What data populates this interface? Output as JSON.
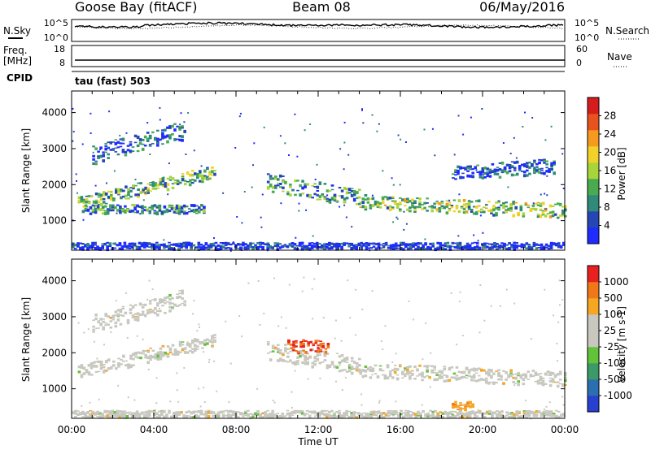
{
  "header": {
    "station": "Goose Bay (fitACF)",
    "beam": "Beam 08",
    "date": "06/May/2016"
  },
  "noise_panel": {
    "left_label": "N.Sky",
    "right_label": "N.Search",
    "left_ticks": [
      "10^5",
      "10^0"
    ],
    "right_ticks": [
      "10^5",
      "10^0"
    ]
  },
  "freq_panel": {
    "left_label_line1": "Freq.",
    "left_label_line2": "[MHz]",
    "right_label": "Nave",
    "left_ticks": [
      "18",
      "8"
    ],
    "right_ticks": [
      "60",
      "0"
    ]
  },
  "cpid": {
    "label": "CPID",
    "mode": "tau (fast) 503"
  },
  "chart_data": [
    {
      "type": "heatmap",
      "name": "Power",
      "ylabel": "Slant Range [km]",
      "colorbar_label": "Power [dB]",
      "ylim": [
        180,
        4600
      ],
      "yticks": [
        1000,
        2000,
        3000,
        4000
      ],
      "colorbar_ticks": [
        4,
        8,
        12,
        16,
        20,
        24,
        28
      ],
      "colorbar_colors": [
        "#1f2bff",
        "#2547b5",
        "#2f8a7a",
        "#49aa4f",
        "#a8d63a",
        "#f2d22a",
        "#f59a1f",
        "#e8531d",
        "#d61c1c"
      ],
      "bands": [
        {
          "t0": 0.3,
          "t1": 7.0,
          "r_start": 1450,
          "r_end": 2350,
          "width": 180,
          "level": 0.4
        },
        {
          "t0": 0.5,
          "t1": 6.5,
          "r_start": 1300,
          "r_end": 1300,
          "width": 120,
          "level": 0.3
        },
        {
          "t0": 1.0,
          "t1": 5.5,
          "r_start": 2800,
          "r_end": 3500,
          "width": 250,
          "level": 0.2
        },
        {
          "t0": 9.5,
          "t1": 14.0,
          "r_start": 2050,
          "r_end": 1600,
          "width": 250,
          "level": 0.3
        },
        {
          "t0": 14.0,
          "t1": 24.0,
          "r_start": 1500,
          "r_end": 1250,
          "width": 200,
          "level": 0.45
        },
        {
          "t0": 18.5,
          "t1": 23.5,
          "r_start": 2300,
          "r_end": 2500,
          "width": 200,
          "level": 0.15
        },
        {
          "t0": 0.0,
          "t1": 24.0,
          "r_start": 280,
          "r_end": 280,
          "width": 90,
          "level": 0.05
        }
      ]
    },
    {
      "type": "heatmap",
      "name": "Velocity",
      "ylabel": "Slant Range [km]",
      "xlabel": "Time UT",
      "colorbar_label": "Velocity [m s-1]",
      "ylim": [
        180,
        4600
      ],
      "xlim": [
        0,
        24
      ],
      "yticks": [
        1000,
        2000,
        3000,
        4000
      ],
      "xticks": [
        "00:00",
        "04:00",
        "08:00",
        "12:00",
        "16:00",
        "20:00",
        "00:00"
      ],
      "colorbar_ticks": [
        "1000",
        "500",
        "100",
        "25",
        "-25",
        "-100",
        "-500",
        "-1000"
      ],
      "colorbar_colors": [
        "#2840d0",
        "#2c6fb0",
        "#3b9a68",
        "#62c23a",
        "#c8c8c0",
        "#c8c8c0",
        "#f5a623",
        "#f07818",
        "#e82020"
      ],
      "bands": [
        {
          "t0": 0.3,
          "t1": 7.0,
          "r_start": 1450,
          "r_end": 2350,
          "width": 180,
          "level": 0.5
        },
        {
          "t0": 1.0,
          "t1": 5.5,
          "r_start": 2800,
          "r_end": 3500,
          "width": 250,
          "level": 0.5
        },
        {
          "t0": 9.5,
          "t1": 14.0,
          "r_start": 2050,
          "r_end": 1600,
          "width": 250,
          "level": 0.5
        },
        {
          "t0": 14.0,
          "t1": 24.0,
          "r_start": 1500,
          "r_end": 1250,
          "width": 200,
          "level": 0.5
        },
        {
          "t0": 10.5,
          "t1": 12.5,
          "r_start": 2150,
          "r_end": 2150,
          "width": 180,
          "level": 1.0
        },
        {
          "t0": 18.5,
          "t1": 19.5,
          "r_start": 500,
          "r_end": 500,
          "width": 120,
          "level": 0.85
        },
        {
          "t0": 0.0,
          "t1": 24.0,
          "r_start": 280,
          "r_end": 280,
          "width": 90,
          "level": 0.5
        }
      ]
    }
  ]
}
